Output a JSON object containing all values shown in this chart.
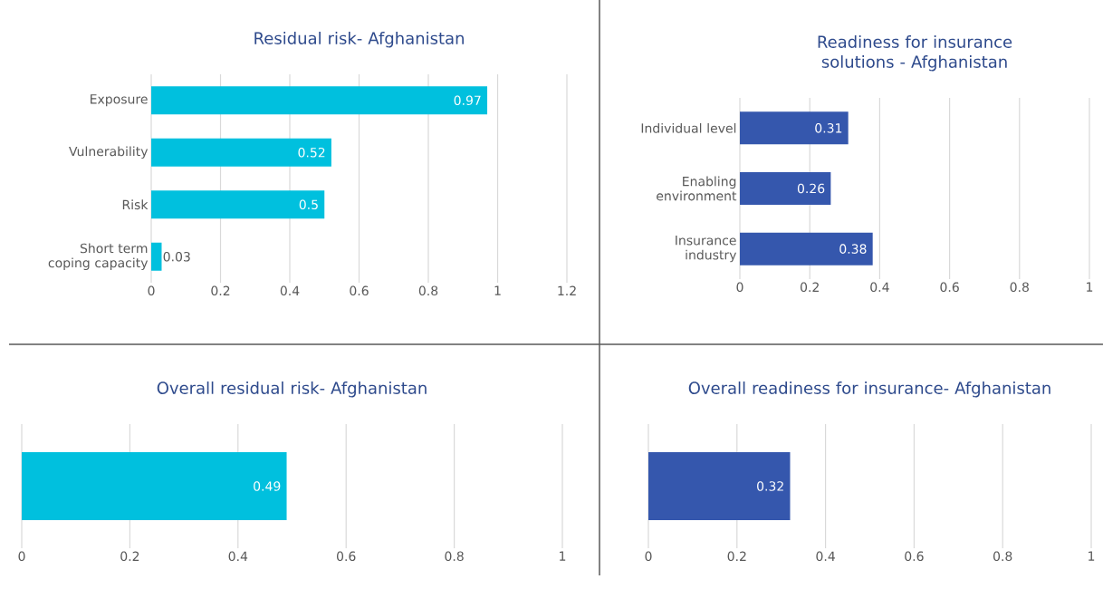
{
  "chart_data": [
    {
      "type": "bar",
      "orientation": "horizontal",
      "title": "Residual risk- Afghanistan",
      "categories": [
        "Exposure",
        "Vulnerability",
        "Risk",
        "Short term coping capacity"
      ],
      "values": [
        0.97,
        0.52,
        0.5,
        0.03
      ],
      "color": "#00c0de",
      "xlim": [
        0,
        1.2
      ],
      "xticks": [
        0,
        0.2,
        0.4,
        0.6,
        0.8,
        1,
        1.2
      ],
      "grid": "x",
      "data_labels": true
    },
    {
      "type": "bar",
      "orientation": "horizontal",
      "title": "Readiness for insurance solutions - Afghanistan",
      "categories": [
        "Individual level",
        "Enabling environment",
        "Insurance industry"
      ],
      "values": [
        0.31,
        0.26,
        0.38
      ],
      "color": "#3557ad",
      "xlim": [
        0,
        1
      ],
      "xticks": [
        0,
        0.2,
        0.4,
        0.6,
        0.8,
        1
      ],
      "grid": "x",
      "data_labels": true
    },
    {
      "type": "bar",
      "orientation": "horizontal",
      "title": "Overall residual risk- Afghanistan",
      "categories": [
        null
      ],
      "values": [
        0.49
      ],
      "color": "#00c0de",
      "xlim": [
        0,
        1
      ],
      "xticks": [
        0,
        0.2,
        0.4,
        0.6,
        0.8,
        1
      ],
      "grid": "x",
      "data_labels": true
    },
    {
      "type": "bar",
      "orientation": "horizontal",
      "title": "Overall readiness for insurance- Afghanistan",
      "categories": [
        null
      ],
      "values": [
        0.32
      ],
      "color": "#3557ad",
      "xlim": [
        0,
        1
      ],
      "xticks": [
        0,
        0.2,
        0.4,
        0.6,
        0.8,
        1
      ],
      "grid": "x",
      "data_labels": true
    }
  ]
}
